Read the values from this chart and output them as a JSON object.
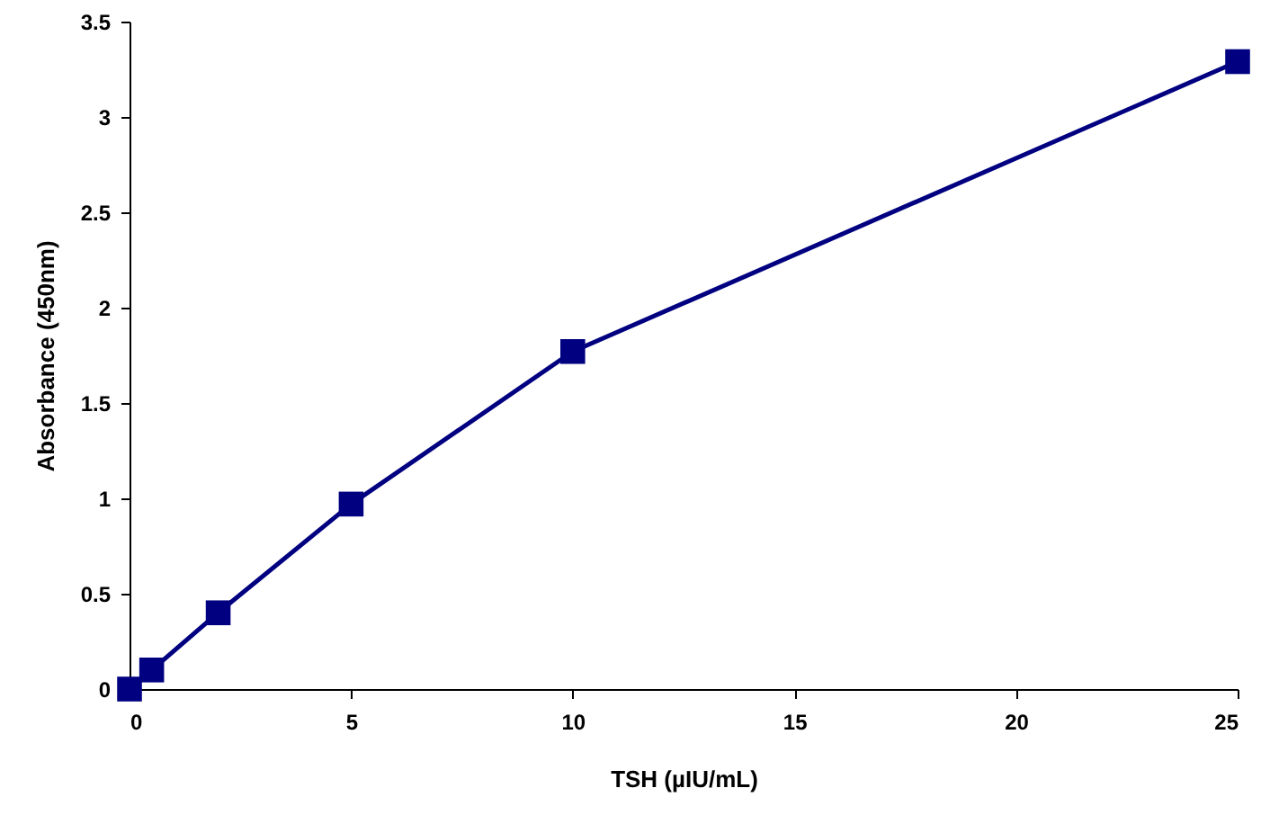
{
  "chart_data": {
    "type": "line",
    "xlabel": "TSH (µIU/mL)",
    "ylabel": "Absorbance (450nm)",
    "x": [
      0,
      0.5,
      2,
      5,
      10,
      25
    ],
    "series": [
      {
        "color": "#000080",
        "values": [
          0.0,
          0.1,
          0.4,
          0.97,
          1.77,
          3.29
        ]
      }
    ],
    "xlim": [
      0,
      25
    ],
    "xticks": [
      0,
      5,
      10,
      15,
      20,
      25
    ],
    "ylim": [
      0,
      3.5
    ],
    "yticks": [
      0,
      0.5,
      1,
      1.5,
      2,
      2.5,
      3,
      3.5
    ],
    "grid": false,
    "marker": "square",
    "line_style": "solid"
  }
}
